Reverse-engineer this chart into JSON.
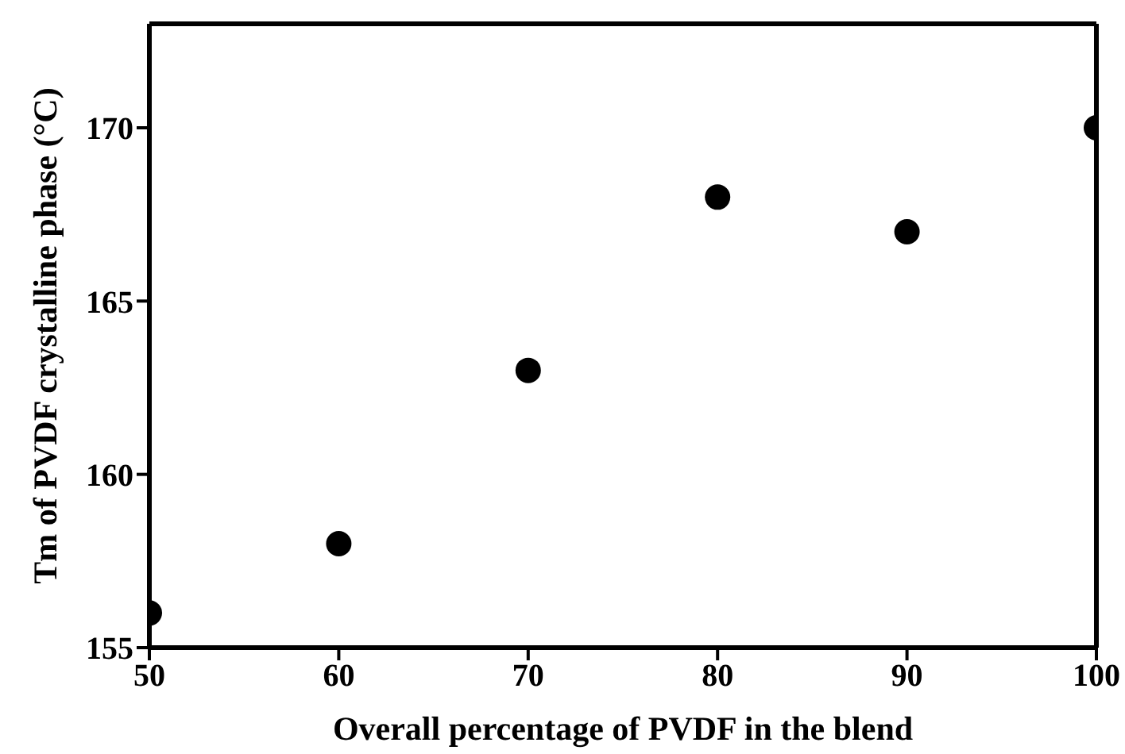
{
  "chart_data": {
    "type": "scatter",
    "xlabel": "Overall percentage of PVDF in the blend",
    "ylabel": "Tm of PVDF crystalline phase (°C)",
    "x": [
      50,
      60,
      70,
      80,
      90,
      100
    ],
    "values": [
      156,
      158,
      163,
      168,
      167,
      170
    ],
    "color": "#000000",
    "marker": "circle",
    "xlim": [
      50,
      100
    ],
    "xticks": [
      50,
      60,
      70,
      80,
      90,
      100
    ],
    "ylim": [
      155,
      173
    ],
    "yticks": [
      155,
      160,
      165,
      170
    ]
  }
}
